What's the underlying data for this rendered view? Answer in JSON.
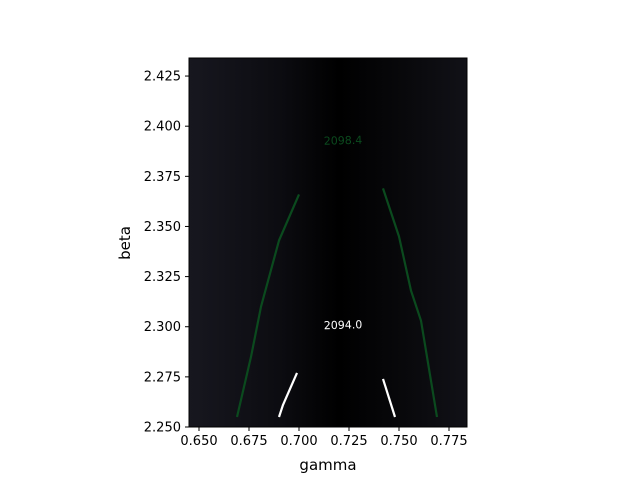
{
  "chart_data": {
    "type": "contour",
    "xlabel": "gamma",
    "ylabel": "beta",
    "xlim": [
      0.645,
      0.784
    ],
    "ylim": [
      2.25,
      2.434
    ],
    "x_ticks": [
      0.65,
      0.675,
      0.7,
      0.725,
      0.75,
      0.775
    ],
    "x_tick_labels": [
      "0.650",
      "0.675",
      "0.700",
      "0.725",
      "0.750",
      "0.775"
    ],
    "y_ticks": [
      2.25,
      2.275,
      2.3,
      2.325,
      2.35,
      2.375,
      2.4,
      2.425
    ],
    "y_tick_labels": [
      "2.250",
      "2.275",
      "2.300",
      "2.325",
      "2.350",
      "2.375",
      "2.400",
      "2.425"
    ],
    "background": {
      "colormap": "dark",
      "edge_color": "#17171f",
      "center_color": "#000000",
      "center_gamma": 0.72
    },
    "contours": [
      {
        "level": 2098.4,
        "label": "2098.4",
        "color": "#0b4a1e",
        "label_color": "#0b4a1e",
        "label_at": [
          0.722,
          2.393
        ],
        "paths": [
          [
            [
              0.669,
              2.255
            ],
            [
              0.676,
              2.285
            ],
            [
              0.681,
              2.31
            ],
            [
              0.69,
              2.343
            ],
            [
              0.7,
              2.366
            ]
          ],
          [
            [
              0.742,
              2.369
            ],
            [
              0.75,
              2.345
            ],
            [
              0.756,
              2.318
            ],
            [
              0.761,
              2.303
            ],
            [
              0.769,
              2.255
            ]
          ]
        ]
      },
      {
        "level": 2094.0,
        "label": "2094.0",
        "color": "#ffffff",
        "label_color": "#ffffff",
        "label_at": [
          0.722,
          2.301
        ],
        "paths": [
          [
            [
              0.69,
              2.255
            ],
            [
              0.692,
              2.261
            ],
            [
              0.699,
              2.277
            ]
          ],
          [
            [
              0.742,
              2.274
            ],
            [
              0.748,
              2.255
            ]
          ]
        ]
      }
    ]
  }
}
